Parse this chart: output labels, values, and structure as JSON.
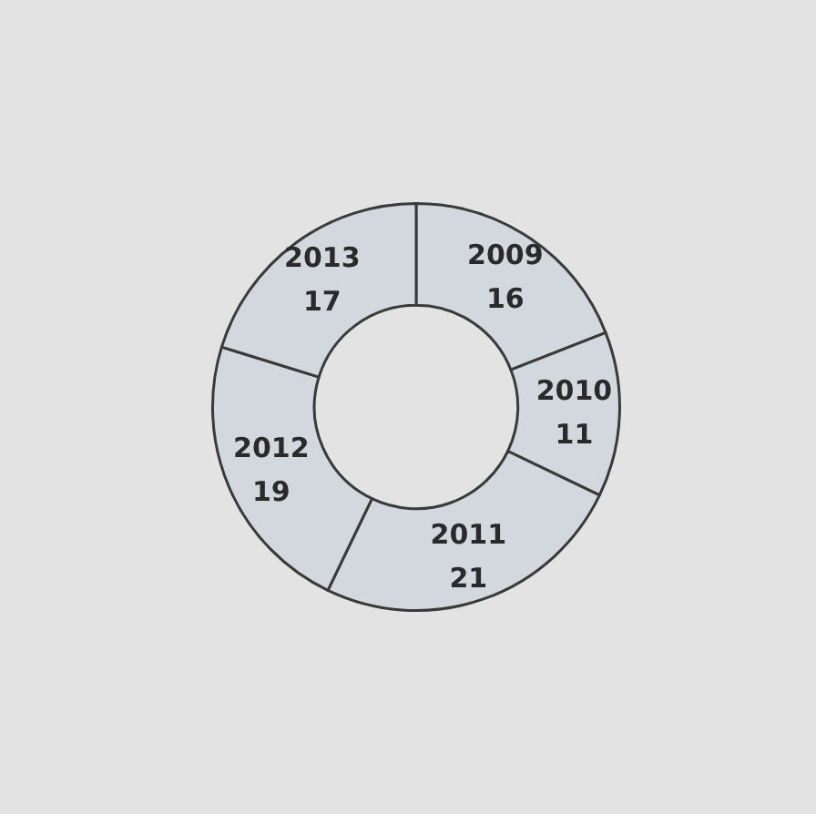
{
  "chart_data": {
    "type": "donut",
    "categories": [
      "2009",
      "2010",
      "2011",
      "2012",
      "2013"
    ],
    "values": [
      16,
      11,
      21,
      19,
      17
    ],
    "colors": [
      "#d3d7de",
      "#d3d7de",
      "#d3d7de",
      "#d3d7de",
      "#d3d7de"
    ],
    "data_labels": true,
    "legend": false
  }
}
